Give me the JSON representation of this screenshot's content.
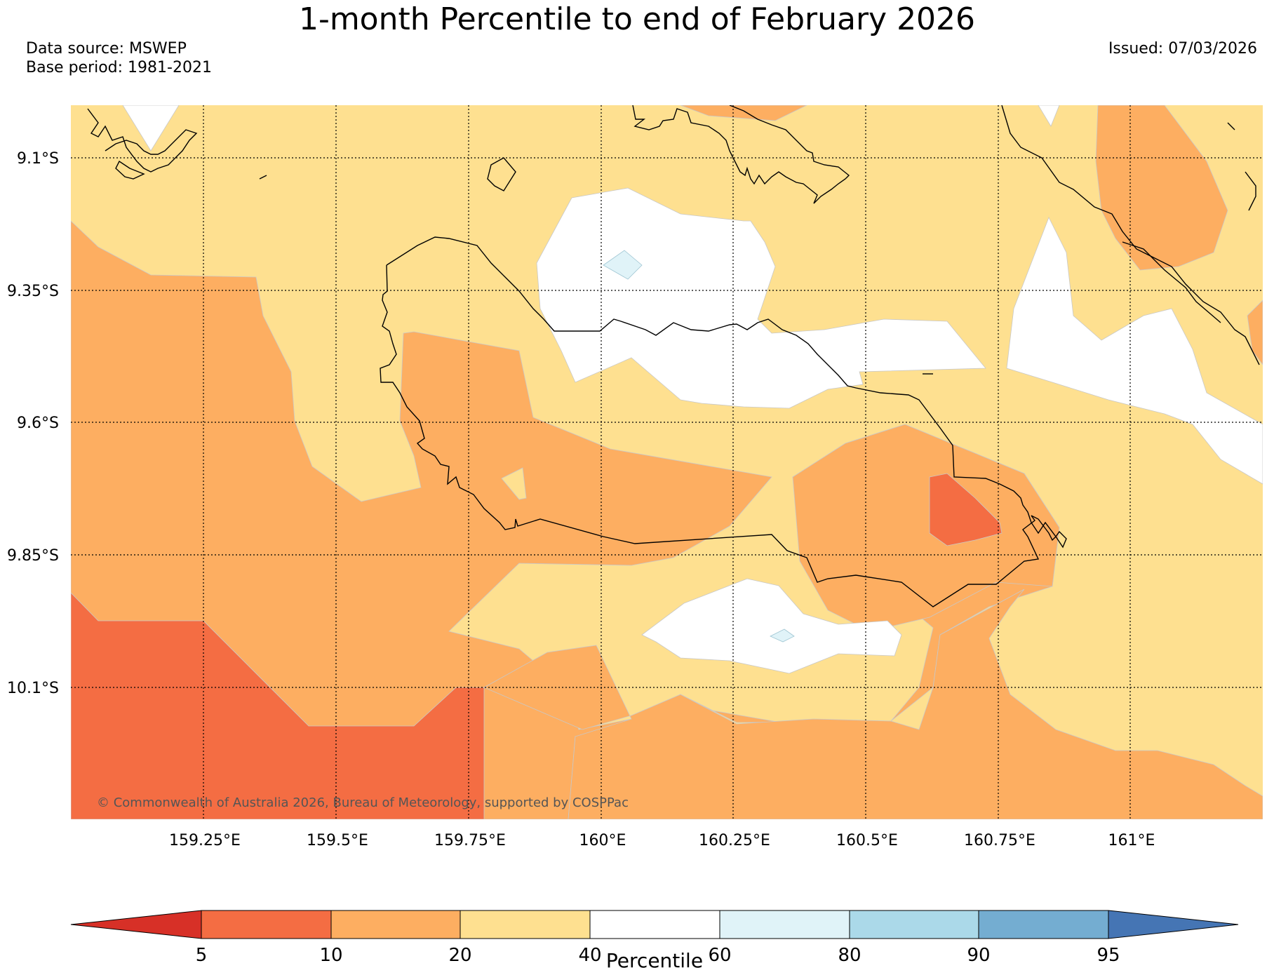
{
  "title": "1-month Percentile to end of February 2026",
  "data_source": "Data source: MSWEP",
  "base_period": "Base period: 1981-2021",
  "issued": "Issued: 07/03/2026",
  "copyright": "© Commonwealth of Australia 2026, Bureau of Meteorology, supported by COSPPac",
  "map": {
    "lat_labels": [
      "9.1°S",
      "9.35°S",
      "9.6°S",
      "9.85°S",
      "10.1°S"
    ],
    "lon_labels": [
      "159.25°E",
      "159.5°E",
      "159.75°E",
      "160°E",
      "160.25°E",
      "160.5°E",
      "160.75°E",
      "161°E"
    ]
  },
  "colorbar": {
    "title": "Percentile",
    "ticks": [
      "5",
      "10",
      "20",
      "40",
      "60",
      "80",
      "90",
      "95"
    ],
    "colors": [
      "#d73027",
      "#f46d43",
      "#fdae61",
      "#fee090",
      "#ffffff",
      "#e0f3f8",
      "#abd9e9",
      "#74add1",
      "#4575b4"
    ]
  }
}
